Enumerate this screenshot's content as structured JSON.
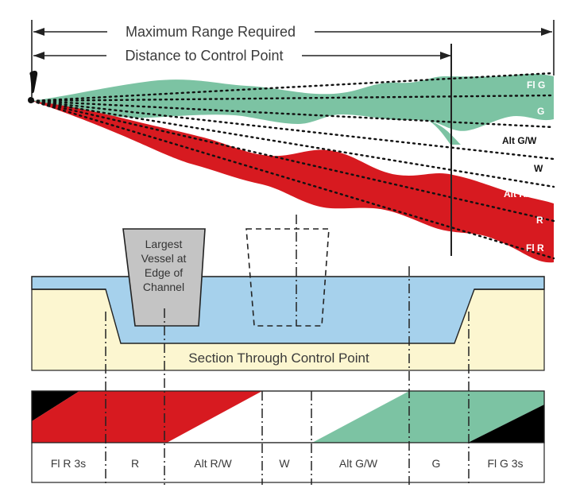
{
  "labels": {
    "max_range": "Maximum Range Required",
    "control_distance": "Distance to Control Point",
    "section": "Section Through Control Point",
    "vessel": [
      "Largest",
      "Vessel at",
      "Edge of",
      "Channel"
    ]
  },
  "sectors": [
    "Fl G",
    "G",
    "Alt G/W",
    "W",
    "Alt R/W",
    "R",
    "Fl R"
  ],
  "bands": [
    "Fl R 3s",
    "R",
    "Alt R/W",
    "W",
    "Alt G/W",
    "G",
    "Fl G 3s"
  ],
  "colors": {
    "green": "#7cc3a3",
    "red": "#d71a20",
    "water": "#a6d1ec",
    "bank": "#fcf6d0",
    "vessel": "#c4c4c4",
    "black": "#000000"
  },
  "icons": {
    "source": "light-source-icon"
  }
}
